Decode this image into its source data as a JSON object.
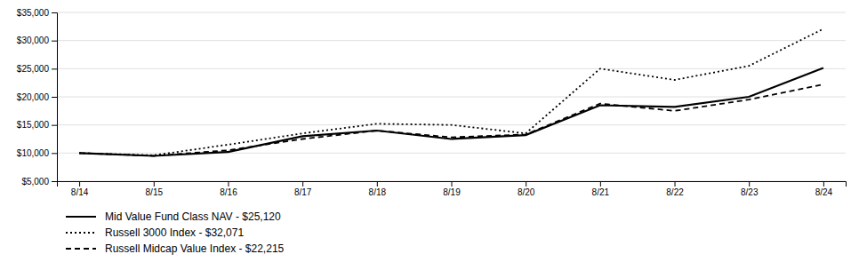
{
  "chart_data": {
    "type": "line",
    "categories": [
      "8/14",
      "8/15",
      "8/16",
      "8/17",
      "8/18",
      "8/19",
      "8/20",
      "8/21",
      "8/22",
      "8/23",
      "8/24"
    ],
    "series": [
      {
        "name": "Mid Value Fund Class NAV - $25,120",
        "color": "#000000",
        "line_style": "solid",
        "values": [
          10000,
          9500,
          10200,
          13000,
          14000,
          12500,
          13200,
          18500,
          18200,
          20000,
          25120
        ]
      },
      {
        "name": "Russell 3000 Index - $32,071",
        "color": "#000000",
        "line_style": "dotted",
        "values": [
          10000,
          9600,
          11500,
          13500,
          15200,
          15000,
          13500,
          25000,
          23000,
          25500,
          32071
        ]
      },
      {
        "name": "Russell Midcap Value Index - $22,215",
        "color": "#000000",
        "line_style": "dashed",
        "values": [
          10000,
          9500,
          10500,
          12500,
          14000,
          12800,
          13300,
          18800,
          17500,
          19500,
          22215
        ]
      }
    ],
    "ylim": [
      5000,
      35000
    ],
    "yticks": [
      {
        "value": 5000,
        "label": "$5,000"
      },
      {
        "value": 10000,
        "label": "$10,000"
      },
      {
        "value": 15000,
        "label": "$15,000"
      },
      {
        "value": 20000,
        "label": "$20,000"
      },
      {
        "value": 25000,
        "label": "$25,000"
      },
      {
        "value": 30000,
        "label": "$30,000"
      },
      {
        "value": 35000,
        "label": "$35,000"
      }
    ],
    "grid": true,
    "legend": "bottom"
  }
}
